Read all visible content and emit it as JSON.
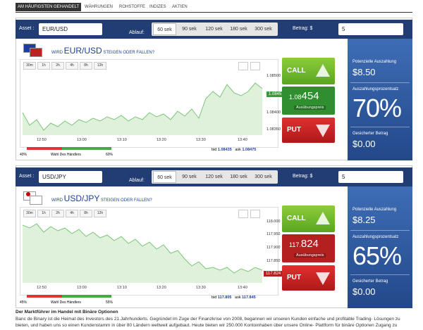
{
  "tabs": [
    "AM HÄUFIGSTEN GEHANDELT",
    "WÄHRUNGEN",
    "ROHSTOFFE",
    "INDIZES",
    "AKTIEN"
  ],
  "panels": [
    {
      "asset_label": "Asset :",
      "asset": "EUR/USD",
      "expiry_label": "Ablauf:",
      "expiry_options": [
        "60 sek",
        "90 sek",
        "120 sek",
        "180 sek",
        "300 sek"
      ],
      "amount_label": "Betrag: $",
      "amount": "5",
      "question_prefix": "WIRD",
      "question_asset": "EUR/USD",
      "question_suffix": "STEIGEN ODER FALLEN?",
      "timeframes": [
        "30m",
        "1h",
        "2h",
        "4h",
        "8h",
        "12h"
      ],
      "y_labels": [
        "1.08500",
        "1.08400",
        "1.08350"
      ],
      "current_price_tag": "1.0845",
      "x_labels": [
        "12:50",
        "13:00",
        "13:10",
        "13:20",
        "13:30",
        "13:40"
      ],
      "sentiment_low": "40%",
      "sentiment_label": "Wahl Des Händlers",
      "sentiment_high": "60%",
      "bid_label": "bid",
      "bid": "1.08435",
      "ask_label": "ask",
      "ask": "1.08475",
      "call": "CALL",
      "price_small": "1.08",
      "price_big": "454",
      "strike_label": "Ausübungspreis",
      "put": "PUT",
      "payout_label": "Potenzielle Auszahlung",
      "payout": "$8.50",
      "percent_label": "Auszahlungsprozentsatz",
      "percent": "70%",
      "secured_label": "Gesicherter Betrag",
      "secured": "$0.00"
    },
    {
      "asset_label": "Asset :",
      "asset": "USD/JPY",
      "expiry_label": "Ablauf:",
      "expiry_options": [
        "60 sek",
        "90 sek",
        "120 sek",
        "180 sek",
        "300 sek"
      ],
      "amount_label": "Betrag: $",
      "amount": "5",
      "question_prefix": "WIRD",
      "question_asset": "USD/JPY",
      "question_suffix": "STEIGEN ODER FALLEN?",
      "timeframes": [
        "30m",
        "1h",
        "2h",
        "4h",
        "8h",
        "12h"
      ],
      "y_labels": [
        "118.000",
        "117.950",
        "117.900",
        "117.850"
      ],
      "current_price_tag": "117.824",
      "x_labels": [
        "12:50",
        "13:00",
        "13:10",
        "13:20",
        "13:30",
        "13:40"
      ],
      "sentiment_low": "45%",
      "sentiment_label": "Wahl Des Händlers",
      "sentiment_high": "55%",
      "bid_label": "bid",
      "bid": "117.805",
      "ask_label": "ask",
      "ask": "117.845",
      "call": "CALL",
      "price_small": "117.",
      "price_big": "824",
      "strike_label": "Ausübungspreis",
      "put": "PUT",
      "payout_label": "Potenzielle Auszahlung",
      "payout": "$8.25",
      "percent_label": "Auszahlungsprozentsatz",
      "percent": "65%",
      "secured_label": "Gesicherter Betrag",
      "secured": "$0.00"
    }
  ],
  "footer": {
    "heading": "Der Marktführer im Handel mit Binäre Optionen",
    "body": "Banc de Binary ist die Heimat des Investors des 21.Jahrhunderts. Gegründet im Zuge der Finanzkrise von 2008, begannen wir unseren Kunden einfache und profitable Trading- Lösungen zu bieten, und haben uns so einen Kundenstamm in über 80 Ländern weltweit aufgebaut. Heute bieten wir 250.000 Kontoinhaben über unsere Online- Plattform für binäre Optionen Zugang zu"
  }
}
